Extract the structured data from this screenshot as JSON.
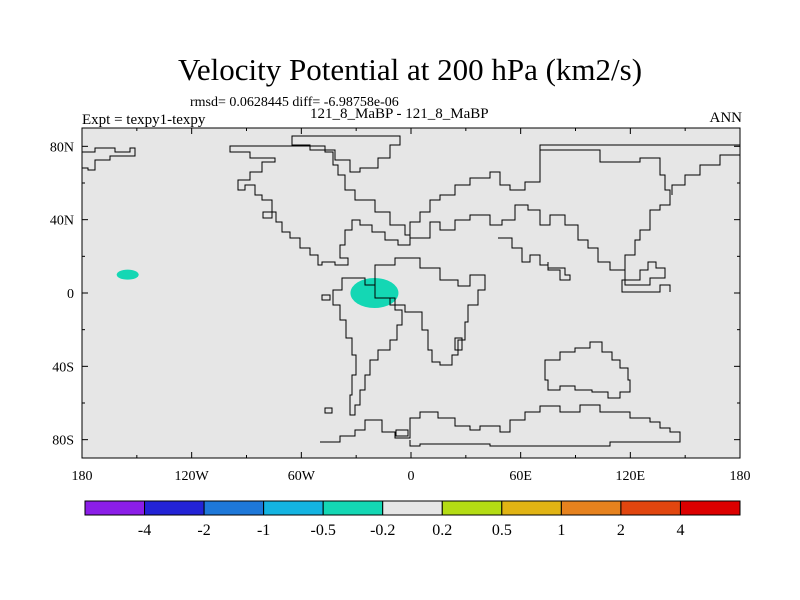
{
  "chart_data": {
    "type": "heatmap",
    "title": "Velocity Potential at 200 hPa (km2/s)",
    "subtitle": "rmsd= 0.0628445  diff= -6.98758e-06",
    "left_label": "Expt = texpy1-texpy",
    "center_label": "121_8_MaBP - 121_8_MaBP",
    "right_label": "ANN",
    "x_ticks": [
      "180",
      "120W",
      "60W",
      "0",
      "60E",
      "120E",
      "180"
    ],
    "x_values": [
      -180,
      -120,
      -60,
      0,
      60,
      120,
      180
    ],
    "y_ticks": [
      "80N",
      "40N",
      "0",
      "40S",
      "80S"
    ],
    "y_values": [
      80,
      40,
      0,
      -40,
      -80
    ],
    "xlim": [
      -180,
      180
    ],
    "ylim": [
      -90,
      90
    ],
    "colorbar": {
      "labels": [
        "-4",
        "-2",
        "-1",
        "-0.5",
        "-0.2",
        "0.2",
        "0.5",
        "1",
        "2",
        "4"
      ],
      "colors": [
        "#8b1ee8",
        "#2323d6",
        "#1e78d9",
        "#14b4e1",
        "#14d7b4",
        "#e6e6e6",
        "#b4dc14",
        "#e1b414",
        "#e6821e",
        "#e1460f",
        "#dc0000"
      ]
    },
    "features": [
      {
        "name": "negative anomaly over equatorial Atlantic",
        "lon": -20,
        "lat": 0,
        "color": "#14d7b4"
      },
      {
        "name": "negative anomaly over central Pacific",
        "lon": -155,
        "lat": 10,
        "color": "#14d7b4"
      }
    ]
  }
}
